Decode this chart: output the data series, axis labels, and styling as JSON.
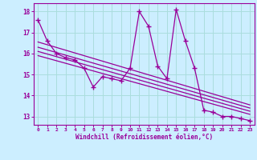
{
  "xlabel": "Windchill (Refroidissement éolien,°C)",
  "bg_color": "#cceeff",
  "line_color": "#990099",
  "grid_color": "#aadddd",
  "xlim": [
    -0.5,
    23.5
  ],
  "ylim": [
    12.6,
    18.4
  ],
  "yticks": [
    13,
    14,
    15,
    16,
    17,
    18
  ],
  "xticks": [
    0,
    1,
    2,
    3,
    4,
    5,
    6,
    7,
    8,
    9,
    10,
    11,
    12,
    13,
    14,
    15,
    16,
    17,
    18,
    19,
    20,
    21,
    22,
    23
  ],
  "main_series": [
    17.6,
    16.6,
    16.0,
    15.8,
    15.7,
    15.3,
    14.4,
    14.9,
    14.8,
    14.7,
    15.3,
    18.0,
    17.3,
    15.4,
    14.8,
    18.1,
    16.6,
    15.3,
    13.3,
    13.2,
    13.0,
    13.0,
    12.9,
    12.8
  ],
  "regression_lines": [
    {
      "x0": 0,
      "y0": 16.55,
      "x1": 23,
      "y1": 13.55
    },
    {
      "x0": 0,
      "y0": 16.3,
      "x1": 23,
      "y1": 13.4
    },
    {
      "x0": 0,
      "y0": 16.1,
      "x1": 23,
      "y1": 13.25
    },
    {
      "x0": 0,
      "y0": 15.9,
      "x1": 23,
      "y1": 13.1
    }
  ]
}
